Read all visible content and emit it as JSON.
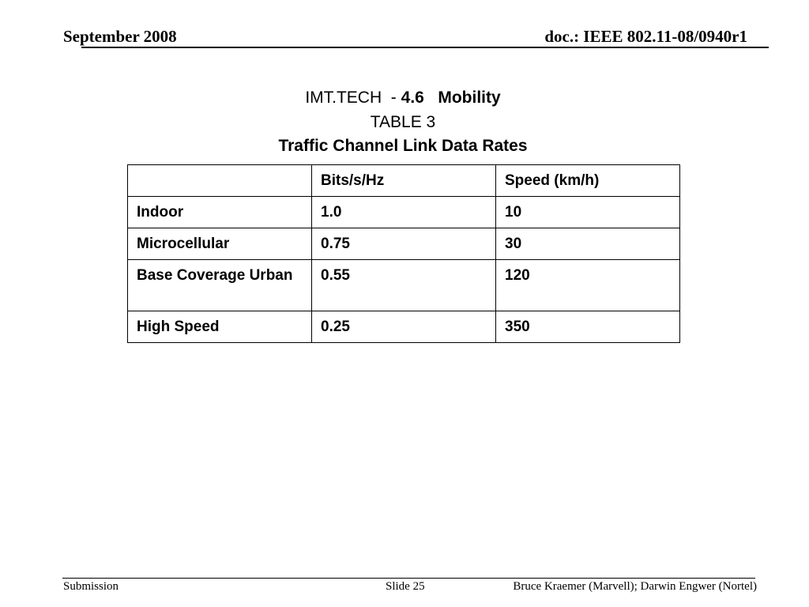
{
  "header": {
    "date": "September 2008",
    "doc_id": "doc.: IEEE 802.11-08/0940r1"
  },
  "title": {
    "line1_prefix": "IMT.TECH  - ",
    "line1_section": "4.6",
    "line1_topic": "Mobility",
    "line2": "TABLE 3",
    "line3": "Traffic Channel Link Data Rates"
  },
  "table": {
    "columns": [
      "",
      "Bits/s/Hz",
      "Speed (km/h)"
    ],
    "rows": [
      [
        "Indoor",
        "1.0",
        "10"
      ],
      [
        "Microcellular",
        "0.75",
        "30"
      ],
      [
        "Base Coverage Urban",
        "0.55",
        "120"
      ],
      [
        "High Speed",
        "0.25",
        "350"
      ]
    ]
  },
  "footer": {
    "left": "Submission",
    "center": "Slide 25",
    "right": "Bruce Kraemer (Marvell); Darwin Engwer (Nortel)"
  }
}
